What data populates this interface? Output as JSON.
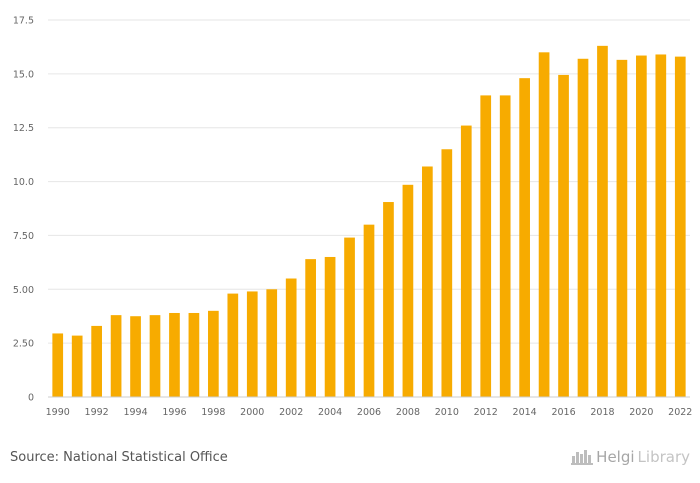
{
  "chart_data": {
    "type": "bar",
    "categories": [
      "1990",
      "1991",
      "1992",
      "1993",
      "1994",
      "1995",
      "1996",
      "1997",
      "1998",
      "1999",
      "2000",
      "2001",
      "2002",
      "2003",
      "2004",
      "2005",
      "2006",
      "2007",
      "2008",
      "2009",
      "2010",
      "2011",
      "2012",
      "2013",
      "2014",
      "2015",
      "2016",
      "2017",
      "2018",
      "2019",
      "2020",
      "2021",
      "2022"
    ],
    "values": [
      2.95,
      2.85,
      3.3,
      3.8,
      3.75,
      3.8,
      3.9,
      3.9,
      4.0,
      4.8,
      4.9,
      5.0,
      5.5,
      6.4,
      6.5,
      7.4,
      8.0,
      9.05,
      9.85,
      10.7,
      11.5,
      12.6,
      14.0,
      14.0,
      14.8,
      16.0,
      14.95,
      15.7,
      16.3,
      15.65,
      15.85,
      15.9,
      15.8
    ],
    "x_tick_labels": [
      "1990",
      "1992",
      "1994",
      "1996",
      "1998",
      "2000",
      "2002",
      "2004",
      "2006",
      "2008",
      "2010",
      "2012",
      "2014",
      "2016",
      "2018",
      "2020",
      "2022"
    ],
    "y_ticks": [
      "0",
      "2.50",
      "5.00",
      "7.50",
      "10.0",
      "12.5",
      "15.0",
      "17.5"
    ],
    "ylim": [
      0,
      17.5
    ],
    "grid": true,
    "bar_color": "#f7ab00"
  },
  "footer": {
    "source": "Source: National Statistical Office",
    "logo_part1": "Helgi",
    "logo_part2": "Library"
  }
}
